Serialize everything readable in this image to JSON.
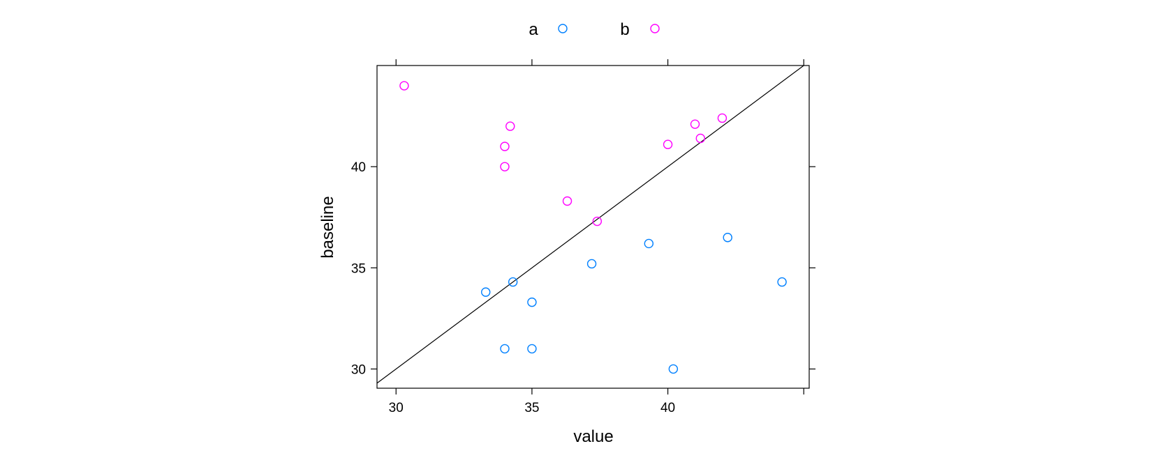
{
  "chart_data": {
    "type": "scatter",
    "title": "",
    "xlabel": "value",
    "ylabel": "baseline",
    "xlim": [
      29.3,
      45.2
    ],
    "ylim": [
      29.05,
      45.0
    ],
    "x_ticks": [
      30,
      35,
      40
    ],
    "y_ticks": [
      30,
      35,
      40
    ],
    "grid": false,
    "legend": "top",
    "reference_line": {
      "type": "identity",
      "slope": 1,
      "intercept": 0
    },
    "series": [
      {
        "name": "a",
        "color": "#0080ff",
        "marker": "open-circle",
        "points": [
          [
            33.3,
            33.8
          ],
          [
            34.3,
            34.3
          ],
          [
            35.0,
            33.3
          ],
          [
            34.0,
            31.0
          ],
          [
            35.0,
            31.0
          ],
          [
            37.2,
            35.2
          ],
          [
            39.3,
            36.2
          ],
          [
            40.2,
            30.0
          ],
          [
            42.2,
            36.5
          ],
          [
            44.2,
            34.3
          ]
        ]
      },
      {
        "name": "b",
        "color": "#ff00ff",
        "marker": "open-circle",
        "points": [
          [
            30.3,
            44.0
          ],
          [
            34.2,
            42.0
          ],
          [
            34.0,
            41.0
          ],
          [
            34.0,
            40.0
          ],
          [
            36.3,
            38.3
          ],
          [
            37.4,
            37.3
          ],
          [
            40.0,
            41.1
          ],
          [
            41.0,
            42.1
          ],
          [
            41.2,
            41.4
          ],
          [
            42.0,
            42.4
          ]
        ]
      }
    ]
  }
}
